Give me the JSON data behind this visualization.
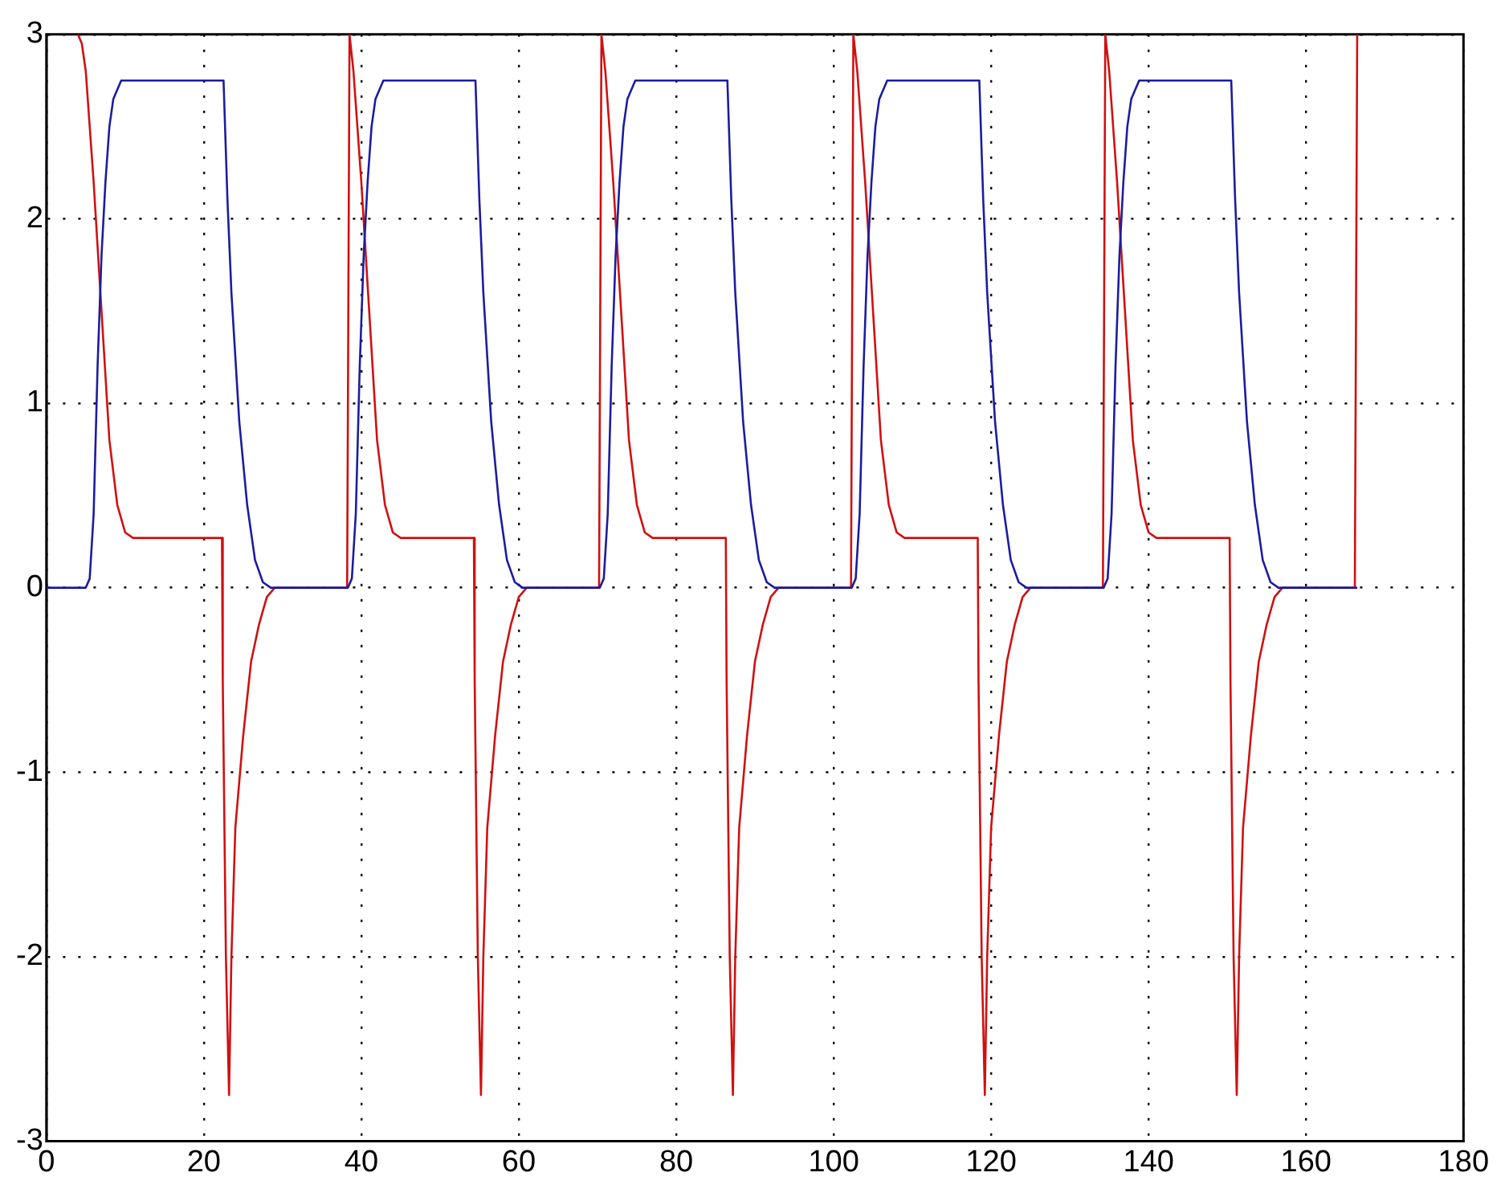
{
  "chart_data": {
    "type": "line",
    "xlim": [
      0,
      180
    ],
    "xticks": [
      0,
      20,
      40,
      60,
      80,
      100,
      120,
      140,
      160,
      180
    ],
    "ylim": [
      -3,
      3
    ],
    "yticks": [
      -3,
      -2,
      -1,
      0,
      1,
      2,
      3
    ],
    "grid": true,
    "legend": false,
    "marker": "none",
    "line_style": "solid",
    "series": [
      {
        "color": "#1c1ca0",
        "x": [
          0,
          5,
          5.5,
          6,
          6.5,
          7,
          7.5,
          8,
          8.5,
          9.5,
          22.5,
          23,
          23.5,
          24.5,
          25.5,
          26.5,
          27.5,
          28.5,
          38.3,
          38.8,
          39.3,
          39.8,
          40.3,
          40.8,
          41.3,
          41.8,
          42.8,
          54.5,
          55,
          55.5,
          56.5,
          57.5,
          58.5,
          59.5,
          60.5,
          70.3,
          70.8,
          71.3,
          71.8,
          72.3,
          72.8,
          73.3,
          73.8,
          74.8,
          86.5,
          87,
          87.5,
          88.5,
          89.5,
          90.5,
          91.5,
          92.5,
          102.3,
          102.8,
          103.3,
          103.8,
          104.3,
          104.8,
          105.3,
          105.8,
          106.8,
          118.5,
          119,
          119.5,
          120.5,
          121.5,
          122.5,
          123.5,
          124.5,
          134.3,
          134.8,
          135.3,
          135.8,
          136.3,
          136.8,
          137.3,
          137.8,
          138.8,
          150.5,
          151,
          151.5,
          152.5,
          153.5,
          154.5,
          155.5,
          156.5,
          166.5
        ],
        "values": [
          0,
          0,
          0.05,
          0.4,
          1.2,
          1.8,
          2.2,
          2.5,
          2.65,
          2.75,
          2.75,
          2.1,
          1.6,
          0.9,
          0.45,
          0.15,
          0.03,
          0,
          0,
          0.05,
          0.4,
          1.2,
          1.8,
          2.2,
          2.5,
          2.65,
          2.75,
          2.75,
          2.1,
          1.6,
          0.9,
          0.45,
          0.15,
          0.03,
          0,
          0,
          0.05,
          0.4,
          1.2,
          1.8,
          2.2,
          2.5,
          2.65,
          2.75,
          2.75,
          2.1,
          1.6,
          0.9,
          0.45,
          0.15,
          0.03,
          0,
          0,
          0.05,
          0.4,
          1.2,
          1.8,
          2.2,
          2.5,
          2.65,
          2.75,
          2.75,
          2.1,
          1.6,
          0.9,
          0.45,
          0.15,
          0.03,
          0,
          0,
          0.05,
          0.4,
          1.2,
          1.8,
          2.2,
          2.5,
          2.65,
          2.75,
          2.75,
          2.1,
          1.6,
          0.9,
          0.45,
          0.15,
          0.03,
          0,
          0
        ]
      },
      {
        "color": "#d01010",
        "x": [
          4,
          4.5,
          5,
          6,
          7,
          8,
          9,
          10,
          11,
          22.3,
          22.4,
          22.8,
          23.2,
          23.5,
          24,
          25,
          26,
          27,
          28,
          29,
          38.2,
          38.5,
          39,
          40,
          41,
          42,
          43,
          44,
          45,
          54.3,
          54.4,
          54.8,
          55.2,
          55.5,
          56,
          57,
          58,
          59,
          60,
          61,
          70.2,
          70.5,
          71,
          72,
          73,
          74,
          75,
          76,
          77,
          86.3,
          86.4,
          86.8,
          87.2,
          87.5,
          88,
          89,
          90,
          91,
          92,
          93,
          102.2,
          102.5,
          103,
          104,
          105,
          106,
          107,
          108,
          109,
          118.3,
          118.4,
          118.8,
          119.2,
          119.5,
          120,
          121,
          122,
          123,
          124,
          125,
          134.2,
          134.5,
          135,
          136,
          137,
          138,
          139,
          140,
          141,
          150.3,
          150.4,
          150.8,
          151.2,
          151.5,
          152,
          153,
          154,
          155,
          156,
          157,
          166.2,
          166.5
        ],
        "values": [
          3,
          2.95,
          2.8,
          2.2,
          1.5,
          0.8,
          0.45,
          0.3,
          0.27,
          0.27,
          -0.5,
          -2,
          -2.75,
          -2,
          -1.3,
          -0.8,
          -0.4,
          -0.2,
          -0.05,
          0,
          0,
          3,
          2.8,
          2.2,
          1.5,
          0.8,
          0.45,
          0.3,
          0.27,
          0.27,
          -0.5,
          -2,
          -2.75,
          -2,
          -1.3,
          -0.8,
          -0.4,
          -0.2,
          -0.05,
          0,
          0,
          3,
          2.8,
          2.2,
          1.5,
          0.8,
          0.45,
          0.3,
          0.27,
          0.27,
          -0.5,
          -2,
          -2.75,
          -2,
          -1.3,
          -0.8,
          -0.4,
          -0.2,
          -0.05,
          0,
          0,
          3,
          2.8,
          2.2,
          1.5,
          0.8,
          0.45,
          0.3,
          0.27,
          0.27,
          -0.5,
          -2,
          -2.75,
          -2,
          -1.3,
          -0.8,
          -0.4,
          -0.2,
          -0.05,
          0,
          0,
          3,
          2.8,
          2.2,
          1.5,
          0.8,
          0.45,
          0.3,
          0.27,
          0.27,
          -0.5,
          -2,
          -2.75,
          -2,
          -1.3,
          -0.8,
          -0.4,
          -0.2,
          -0.05,
          0,
          0,
          3
        ]
      }
    ]
  }
}
